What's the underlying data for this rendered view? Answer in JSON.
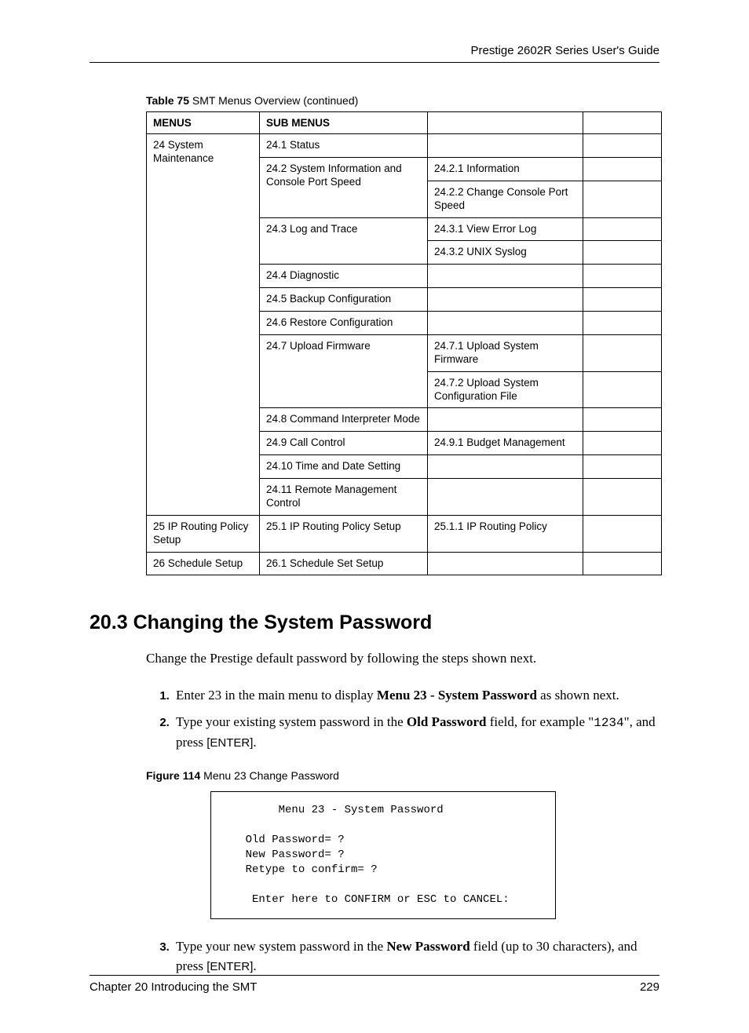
{
  "header": {
    "guide_title": "Prestige 2602R Series User's Guide"
  },
  "table_caption": {
    "label": "Table 75",
    "text": "SMT Menus Overview  (continued)"
  },
  "table": {
    "headers": {
      "c1": "MENUS",
      "c2": "SUB MENUS",
      "c3": "",
      "c4": ""
    },
    "cells": {
      "r1c1": "24 System Maintenance",
      "r1c2": "24.1 Status",
      "r2c2": "24.2 System Information and Console Port Speed",
      "r2c3": "24.2.1 Information",
      "r3c3": "24.2.2 Change Console Port Speed",
      "r4c2": "24.3 Log and Trace",
      "r4c3": "24.3.1 View Error Log",
      "r5c3": "24.3.2 UNIX Syslog",
      "r6c2": "24.4 Diagnostic",
      "r7c2": "24.5 Backup Configuration",
      "r8c2": "24.6 Restore Configuration",
      "r9c2": "24.7 Upload Firmware",
      "r9c3": "24.7.1 Upload System Firmware",
      "r10c3": "24.7.2 Upload System Configuration File",
      "r11c2": "24.8 Command Interpreter Mode",
      "r12c2": "24.9 Call Control",
      "r12c3": "24.9.1 Budget Management",
      "r13c2": "24.10 Time and Date Setting",
      "r14c2": "24.11 Remote Management Control",
      "r15c1": "25 IP Routing Policy Setup",
      "r15c2": "25.1 IP Routing Policy Setup",
      "r15c3": "25.1.1 IP Routing Policy",
      "r16c1": "26 Schedule Setup",
      "r16c2": "26.1 Schedule Set Setup"
    }
  },
  "section": {
    "heading": "20.3  Changing the System Password",
    "intro": "Change the Prestige default password by following the steps shown next.",
    "steps": {
      "s1_a": "Enter 23 in the main menu to display ",
      "s1_b": "Menu 23 - System Password",
      "s1_c": " as shown next.",
      "s2_a": "Type your existing system password in the ",
      "s2_b": "Old Password",
      "s2_c": " field, for example \"",
      "s2_code": "1234",
      "s2_d": "\", and press ",
      "s2_key": "[ENTER]",
      "s2_e": ".",
      "s3_a": "Type your new system password in the ",
      "s3_b": "New Password",
      "s3_c": " field (up to 30 characters), and press ",
      "s3_key": "[ENTER]",
      "s3_d": "."
    }
  },
  "figure_caption": {
    "label": "Figure 114",
    "text": "Menu 23 Change Password"
  },
  "terminal": "         Menu 23 - System Password\n\n    Old Password= ?\n    New Password= ?\n    Retype to confirm= ?\n\n     Enter here to CONFIRM or ESC to CANCEL:",
  "footer": {
    "chapter": "Chapter 20 Introducing the SMT",
    "page": "229"
  }
}
